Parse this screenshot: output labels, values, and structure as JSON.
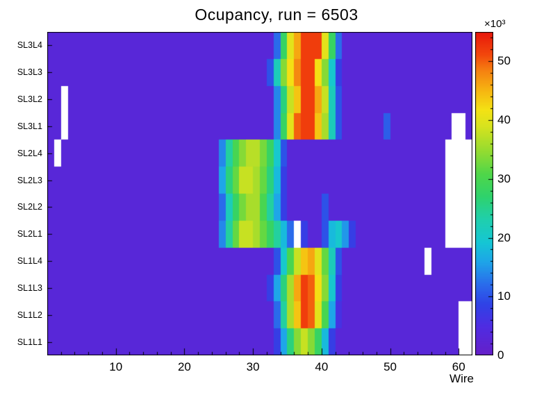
{
  "header": {
    "title": "Ocupancy, run = 6503"
  },
  "chart_data": {
    "type": "heatmap",
    "title": "Ocupancy, run = 6503",
    "xlabel": "Wire",
    "x_range": [
      0,
      62
    ],
    "x_major_ticks": [
      10,
      20,
      30,
      40,
      50,
      60
    ],
    "x_minor_tick_step": 2,
    "y_categories_bottom_to_top": [
      "SL1L1",
      "SL1L2",
      "SL1L3",
      "SL1L4",
      "SL2L1",
      "SL2L2",
      "SL2L3",
      "SL2L4",
      "SL3L1",
      "SL3L2",
      "SL3L3",
      "SL3L4"
    ],
    "z_unit_label": "×10³",
    "z_ticks": [
      0,
      10,
      20,
      30,
      40,
      50
    ],
    "z_minor_tick_step": 2,
    "z_max": 55,
    "legend_position": "right-colorbar",
    "grid": false,
    "empty_bin_color": "#ffffff",
    "palette_stops": [
      [
        0.0,
        "#661fc8"
      ],
      [
        0.09,
        "#4f2ce2"
      ],
      [
        0.16,
        "#2f43e6"
      ],
      [
        0.22,
        "#2a6ceb"
      ],
      [
        0.29,
        "#1ea5e8"
      ],
      [
        0.35,
        "#15c6d4"
      ],
      [
        0.42,
        "#1fcfae"
      ],
      [
        0.49,
        "#2ed26d"
      ],
      [
        0.56,
        "#4fd64a"
      ],
      [
        0.64,
        "#9bdc2e"
      ],
      [
        0.71,
        "#d8e31e"
      ],
      [
        0.76,
        "#f4e214"
      ],
      [
        0.82,
        "#f6b511"
      ],
      [
        0.88,
        "#f58211"
      ],
      [
        0.93,
        "#f2480c"
      ],
      [
        1.0,
        "#e8170b"
      ]
    ],
    "values_note": "runs are [firstWire, lastWire, value_in_thousands]; null = empty (white) bin",
    "rows_top_to_bottom": [
      {
        "label": "SL3L4",
        "runs": [
          [
            1,
            33,
            3
          ],
          [
            34,
            34,
            12
          ],
          [
            35,
            35,
            28
          ],
          [
            36,
            36,
            40
          ],
          [
            37,
            37,
            46
          ],
          [
            38,
            40,
            52
          ],
          [
            41,
            41,
            40
          ],
          [
            42,
            42,
            28
          ],
          [
            43,
            43,
            12
          ],
          [
            44,
            62,
            3
          ]
        ]
      },
      {
        "label": "SL3L3",
        "runs": [
          [
            1,
            32,
            3
          ],
          [
            33,
            33,
            10
          ],
          [
            34,
            34,
            22
          ],
          [
            35,
            35,
            34
          ],
          [
            36,
            36,
            42
          ],
          [
            37,
            37,
            48
          ],
          [
            38,
            39,
            52
          ],
          [
            40,
            40,
            42
          ],
          [
            41,
            41,
            34
          ],
          [
            42,
            42,
            20
          ],
          [
            43,
            43,
            8
          ],
          [
            44,
            62,
            3
          ]
        ]
      },
      {
        "label": "SL3L2",
        "runs": [
          [
            1,
            2,
            3
          ],
          [
            3,
            3,
            null
          ],
          [
            4,
            33,
            3
          ],
          [
            34,
            34,
            14
          ],
          [
            35,
            35,
            26
          ],
          [
            36,
            36,
            38
          ],
          [
            37,
            37,
            44
          ],
          [
            38,
            39,
            52
          ],
          [
            40,
            40,
            46
          ],
          [
            41,
            41,
            38
          ],
          [
            42,
            42,
            22
          ],
          [
            43,
            43,
            10
          ],
          [
            44,
            62,
            3
          ]
        ]
      },
      {
        "label": "SL3L1",
        "runs": [
          [
            1,
            2,
            3
          ],
          [
            3,
            3,
            null
          ],
          [
            4,
            33,
            3
          ],
          [
            34,
            34,
            14
          ],
          [
            35,
            35,
            28
          ],
          [
            36,
            36,
            40
          ],
          [
            37,
            37,
            50
          ],
          [
            38,
            39,
            52
          ],
          [
            40,
            40,
            44
          ],
          [
            41,
            41,
            36
          ],
          [
            42,
            42,
            22
          ],
          [
            43,
            43,
            10
          ],
          [
            44,
            49,
            3
          ],
          [
            50,
            50,
            11
          ],
          [
            51,
            59,
            3
          ],
          [
            60,
            61,
            null
          ],
          [
            62,
            62,
            3
          ]
        ]
      },
      {
        "label": "SL2L4",
        "runs": [
          [
            1,
            1,
            3
          ],
          [
            2,
            2,
            null
          ],
          [
            3,
            25,
            3
          ],
          [
            26,
            26,
            14
          ],
          [
            27,
            27,
            24
          ],
          [
            28,
            28,
            30
          ],
          [
            29,
            29,
            34
          ],
          [
            30,
            31,
            37
          ],
          [
            32,
            32,
            33
          ],
          [
            33,
            33,
            28
          ],
          [
            34,
            34,
            20
          ],
          [
            35,
            35,
            10
          ],
          [
            36,
            58,
            3
          ],
          [
            59,
            62,
            null
          ]
        ]
      },
      {
        "label": "SL2L3",
        "runs": [
          [
            1,
            25,
            3
          ],
          [
            26,
            26,
            16
          ],
          [
            27,
            27,
            26
          ],
          [
            28,
            28,
            32
          ],
          [
            29,
            30,
            38
          ],
          [
            31,
            31,
            36
          ],
          [
            32,
            32,
            32
          ],
          [
            33,
            33,
            26
          ],
          [
            34,
            34,
            18
          ],
          [
            35,
            35,
            8
          ],
          [
            36,
            58,
            3
          ],
          [
            59,
            62,
            null
          ]
        ]
      },
      {
        "label": "SL2L2",
        "runs": [
          [
            1,
            25,
            3
          ],
          [
            26,
            26,
            12
          ],
          [
            27,
            27,
            22
          ],
          [
            28,
            28,
            28
          ],
          [
            29,
            29,
            33
          ],
          [
            30,
            31,
            36
          ],
          [
            32,
            32,
            30
          ],
          [
            33,
            33,
            24
          ],
          [
            34,
            34,
            16
          ],
          [
            35,
            35,
            8
          ],
          [
            36,
            40,
            3
          ],
          [
            41,
            41,
            10
          ],
          [
            42,
            58,
            3
          ],
          [
            59,
            62,
            null
          ]
        ]
      },
      {
        "label": "SL2L1",
        "runs": [
          [
            1,
            25,
            3
          ],
          [
            26,
            26,
            14
          ],
          [
            27,
            27,
            24
          ],
          [
            28,
            28,
            32
          ],
          [
            29,
            30,
            38
          ],
          [
            31,
            31,
            36
          ],
          [
            32,
            32,
            32
          ],
          [
            33,
            33,
            28
          ],
          [
            34,
            34,
            24
          ],
          [
            35,
            35,
            18
          ],
          [
            36,
            36,
            12
          ],
          [
            37,
            37,
            null
          ],
          [
            38,
            38,
            8
          ],
          [
            39,
            40,
            3
          ],
          [
            41,
            41,
            10
          ],
          [
            42,
            42,
            18
          ],
          [
            43,
            43,
            20
          ],
          [
            44,
            44,
            15
          ],
          [
            45,
            45,
            8
          ],
          [
            46,
            58,
            3
          ],
          [
            59,
            62,
            null
          ]
        ]
      },
      {
        "label": "SL1L4",
        "runs": [
          [
            1,
            33,
            3
          ],
          [
            34,
            34,
            10
          ],
          [
            35,
            35,
            20
          ],
          [
            36,
            36,
            30
          ],
          [
            37,
            37,
            38
          ],
          [
            38,
            38,
            44
          ],
          [
            39,
            39,
            46
          ],
          [
            40,
            40,
            40
          ],
          [
            41,
            41,
            32
          ],
          [
            42,
            42,
            22
          ],
          [
            43,
            43,
            10
          ],
          [
            44,
            55,
            3
          ],
          [
            56,
            56,
            null
          ],
          [
            57,
            62,
            3
          ]
        ]
      },
      {
        "label": "SL1L3",
        "runs": [
          [
            1,
            32,
            3
          ],
          [
            33,
            33,
            8
          ],
          [
            34,
            34,
            16
          ],
          [
            35,
            35,
            26
          ],
          [
            36,
            36,
            36
          ],
          [
            37,
            37,
            46
          ],
          [
            38,
            38,
            52
          ],
          [
            39,
            39,
            50
          ],
          [
            40,
            40,
            42
          ],
          [
            41,
            41,
            34
          ],
          [
            42,
            42,
            20
          ],
          [
            43,
            43,
            8
          ],
          [
            44,
            62,
            3
          ]
        ]
      },
      {
        "label": "SL1L2",
        "runs": [
          [
            1,
            33,
            3
          ],
          [
            34,
            34,
            12
          ],
          [
            35,
            35,
            24
          ],
          [
            36,
            36,
            36
          ],
          [
            37,
            37,
            44
          ],
          [
            38,
            38,
            52
          ],
          [
            39,
            39,
            50
          ],
          [
            40,
            40,
            40
          ],
          [
            41,
            41,
            30
          ],
          [
            42,
            42,
            16
          ],
          [
            43,
            43,
            6
          ],
          [
            44,
            60,
            3
          ],
          [
            61,
            62,
            null
          ]
        ]
      },
      {
        "label": "SL1L1",
        "runs": [
          [
            1,
            33,
            3
          ],
          [
            34,
            34,
            8
          ],
          [
            35,
            35,
            16
          ],
          [
            36,
            36,
            26
          ],
          [
            37,
            37,
            34
          ],
          [
            38,
            38,
            38
          ],
          [
            39,
            39,
            34
          ],
          [
            40,
            40,
            28
          ],
          [
            41,
            41,
            18
          ],
          [
            42,
            42,
            8
          ],
          [
            43,
            60,
            3
          ],
          [
            61,
            62,
            null
          ]
        ]
      }
    ]
  }
}
